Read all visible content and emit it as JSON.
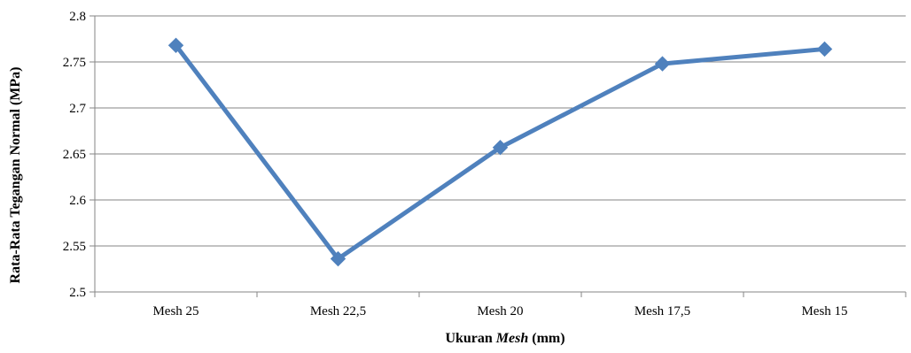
{
  "chart_data": {
    "type": "line",
    "title": "",
    "xlabel_prefix": "Ukuran ",
    "xlabel_italic": "Mesh",
    "xlabel_suffix": " (mm)",
    "ylabel": "Rata-Rata Tegangan Normal (MPa)",
    "categories": [
      "Mesh 25",
      "Mesh 22,5",
      "Mesh 20",
      "Mesh 17,5",
      "Mesh 15"
    ],
    "series": [
      {
        "values": [
          2.768,
          2.536,
          2.657,
          2.748,
          2.764
        ],
        "color": "#4F81BD",
        "marker": "diamond"
      }
    ],
    "ylim": [
      2.5,
      2.8
    ],
    "yticks": [
      2.5,
      2.55,
      2.6,
      2.65,
      2.7,
      2.75,
      2.8
    ],
    "ytick_labels": [
      "2.5",
      "2.55",
      "2.6",
      "2.65",
      "2.7",
      "2.75",
      "2.8"
    ],
    "grid": true,
    "legend": "none"
  }
}
